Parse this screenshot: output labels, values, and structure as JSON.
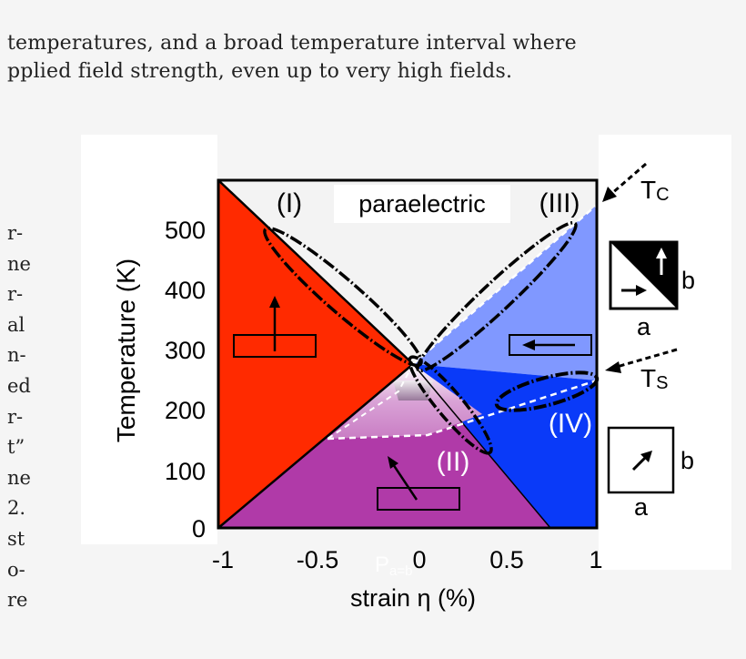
{
  "text_top": [
    "temperatures, and a broad temperature interval where",
    "pplied field strength, even up to very high fields."
  ],
  "text_left_fragments": [
    "r-",
    "ne",
    "r-",
    "al",
    "n-",
    "ed",
    "r-",
    "t”",
    "ne",
    "2.",
    "st",
    "o-",
    "re"
  ],
  "chart_data": {
    "type": "phase-diagram",
    "xlabel": "strain η (%)",
    "ylabel": "Temperature (K)",
    "xlim": [
      -1,
      1
    ],
    "ylim": [
      0,
      580
    ],
    "xticks": [
      "-1",
      "-0.5",
      "0",
      "0.5",
      "1"
    ],
    "xtick_values": [
      -1,
      -0.5,
      0,
      0.5,
      1
    ],
    "yticks": [
      "0",
      "100",
      "200",
      "300",
      "400",
      "500"
    ],
    "ytick_values": [
      0,
      100,
      200,
      300,
      400,
      500
    ],
    "regions": [
      {
        "label": "(I)",
        "color": "#ff2a00"
      },
      {
        "label": "(II)",
        "color": "#b03aa8"
      },
      {
        "label": "(III)",
        "color": "#8098ff"
      },
      {
        "label": "(IV)",
        "color": "#0a3af8"
      },
      {
        "label": "paraelectric",
        "color": "#f3f3f3"
      }
    ],
    "phase_boundaries": [
      {
        "name": "I-paraelectric",
        "points": [
          [
            -1,
            580
          ],
          [
            0,
            270
          ]
        ]
      },
      {
        "name": "III-paraelectric",
        "points": [
          [
            0,
            270
          ],
          [
            1,
            530
          ]
        ]
      },
      {
        "name": "I-II",
        "points": [
          [
            0,
            270
          ],
          [
            -1,
            0
          ]
        ]
      },
      {
        "name": "II-IV",
        "points": [
          [
            0,
            270
          ],
          [
            0.75,
            0
          ]
        ]
      },
      {
        "name": "III-IV (dashed)",
        "points": [
          [
            0,
            160
          ],
          [
            1,
            250
          ]
        ]
      },
      {
        "name": "II dashed",
        "points": [
          [
            -0.5,
            150
          ],
          [
            0,
            155
          ],
          [
            0.15,
            190
          ],
          [
            0,
            270
          ]
        ]
      }
    ],
    "annotations": {
      "tc": "T",
      "tc_sub": "C",
      "ts": "T",
      "ts_sub": "S",
      "under_x": "P",
      "under_x_sub": "a=b",
      "legend_a": "a",
      "legend_b": "b"
    }
  }
}
